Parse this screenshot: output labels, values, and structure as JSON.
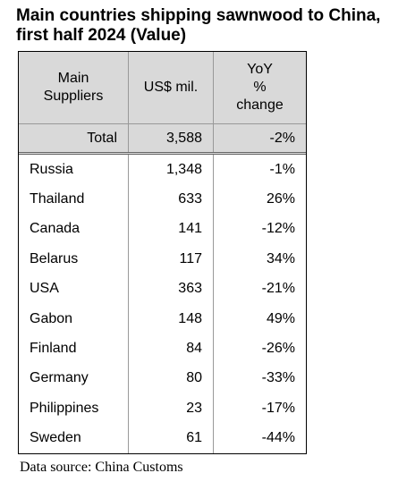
{
  "header": {
    "title": [
      "Main countries shipping sawnwood to China,",
      "first half 2024 (Value)"
    ]
  },
  "table": {
    "columns": [
      [
        "Main",
        "Suppliers"
      ],
      [
        "US$ mil."
      ],
      [
        "YoY",
        "%",
        "change"
      ]
    ],
    "total": [
      "Total",
      "3,588",
      "-2%"
    ],
    "rows": [
      [
        "Russia",
        "1,348",
        "-1%"
      ],
      [
        "Thailand",
        "633",
        "26%"
      ],
      [
        "Canada",
        "141",
        "-12%"
      ],
      [
        "Belarus",
        "117",
        "34%"
      ],
      [
        "USA",
        "363",
        "-21%"
      ],
      [
        "Gabon",
        "148",
        "49%"
      ],
      [
        "Finland",
        "84",
        "-26%"
      ],
      [
        "Germany",
        "80",
        "-33%"
      ],
      [
        "Philippines",
        "23",
        "-17%"
      ],
      [
        "Sweden",
        "61",
        "-44%"
      ]
    ]
  },
  "footer": {
    "source": "Data source: China Customs"
  }
}
